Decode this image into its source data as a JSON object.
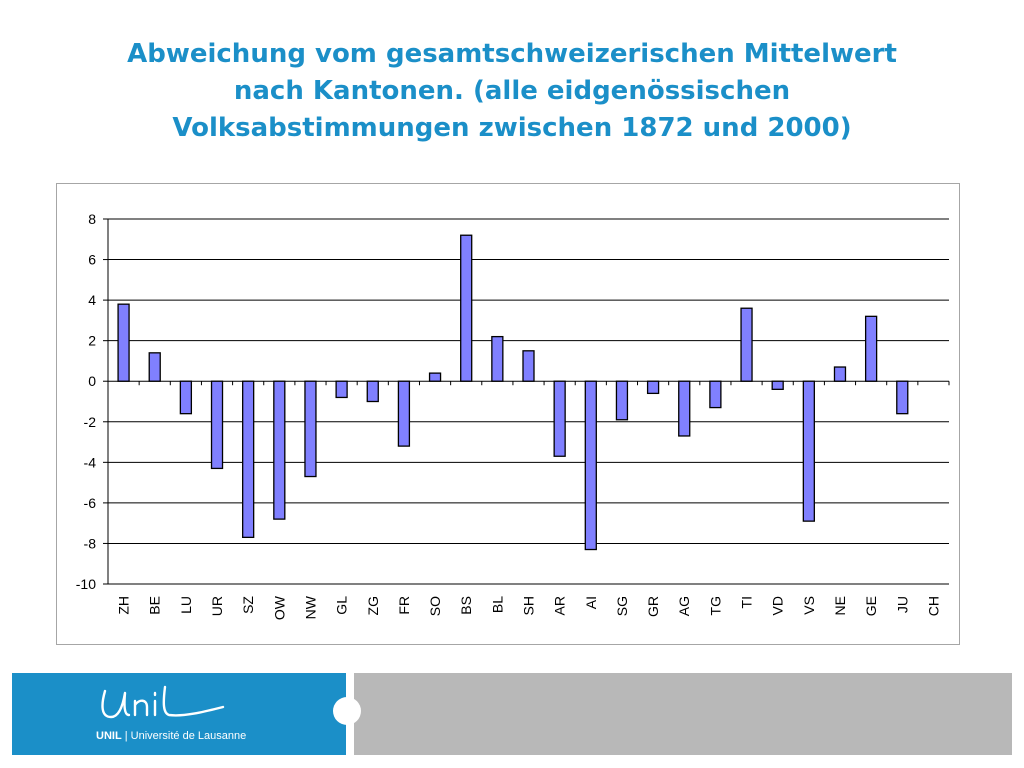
{
  "title": {
    "line1": "Abweichung vom gesamtschweizerischen Mittelwert",
    "line2": "nach Kantonen. (alle eidgenössischen",
    "line3": "Volksabstimmungen zwischen 1872 und 2000)"
  },
  "chart_data": {
    "type": "bar",
    "title": "",
    "xlabel": "",
    "ylabel": "",
    "ylim": [
      -10,
      8
    ],
    "yticks": [
      8,
      6,
      4,
      2,
      0,
      -2,
      -4,
      -6,
      -8,
      -10
    ],
    "grid": true,
    "categories": [
      "ZH",
      "BE",
      "LU",
      "UR",
      "SZ",
      "OW",
      "NW",
      "GL",
      "ZG",
      "FR",
      "SO",
      "BS",
      "BL",
      "SH",
      "AR",
      "AI",
      "SG",
      "GR",
      "AG",
      "TG",
      "TI",
      "VD",
      "VS",
      "NE",
      "GE",
      "JU",
      "CH"
    ],
    "values": [
      3.8,
      1.4,
      -1.6,
      -4.3,
      -7.7,
      -6.8,
      -4.7,
      -0.8,
      -1.0,
      -3.2,
      0.4,
      7.2,
      2.2,
      1.5,
      -3.7,
      -8.3,
      -1.9,
      -0.6,
      -2.7,
      -1.3,
      3.6,
      -0.4,
      -6.9,
      0.7,
      3.2,
      -1.6,
      0
    ],
    "colors": {
      "bar_fill": "#8080ff",
      "bar_stroke": "#000000",
      "grid": "#000000"
    }
  },
  "logo": {
    "script_text": "Unil",
    "caption_bold": "UNIL",
    "caption_rest": " | Université de Lausanne"
  },
  "colors": {
    "title": "#1b8fc8",
    "footer_blue": "#1b8fc8",
    "footer_gray": "#b8b8b8"
  }
}
